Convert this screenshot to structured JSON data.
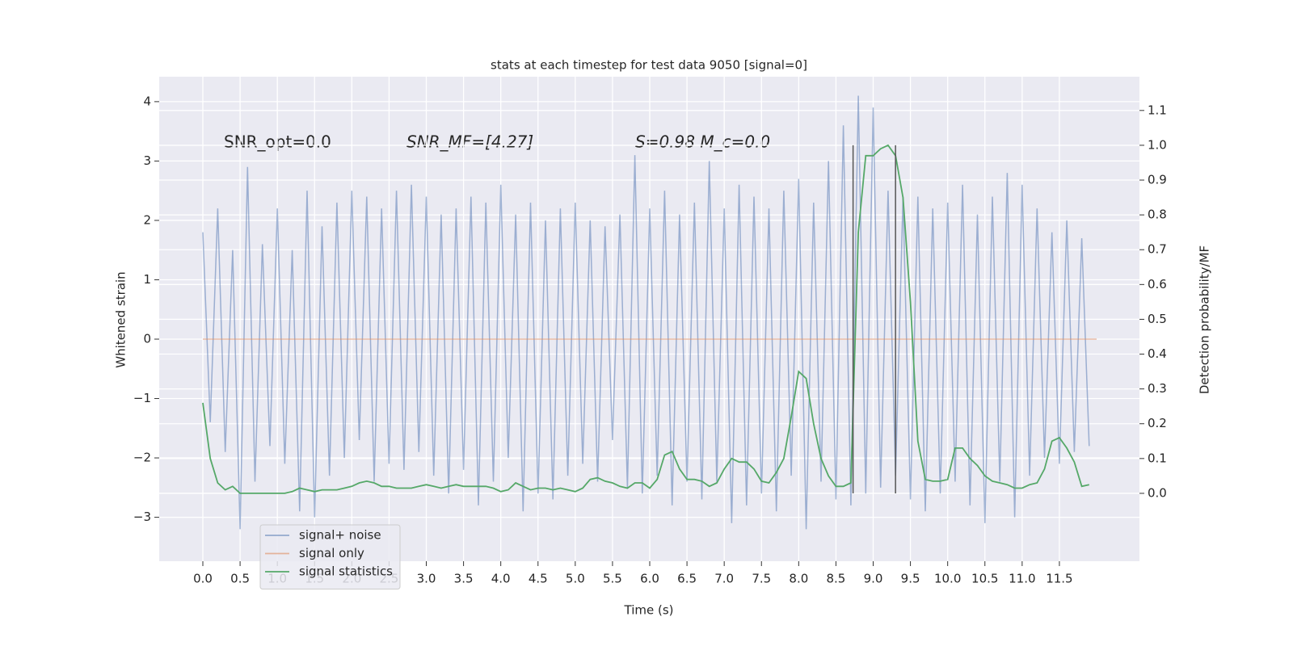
{
  "chart_data": {
    "type": "line",
    "title": "stats at each timestep for test data 9050 [signal=0]",
    "xlabel": "Time (s)",
    "ylabel": "Whitened strain",
    "y2label": "Detection probability/MF",
    "annotations": [
      "SNR_opt=0.0",
      "SNR_MF=[4.27]",
      "S=0.98   M_c=0.0"
    ],
    "xlim": [
      -0.586,
      12.575
    ],
    "ylim": [
      -3.74,
      4.42
    ],
    "y2lim": [
      -0.195,
      1.197
    ],
    "grid": true,
    "legend": "lower left",
    "xticks": [
      {
        "value": 0,
        "label": "0.0"
      },
      {
        "value": 0.5,
        "label": "0.5"
      },
      {
        "value": 1,
        "label": "1.0"
      },
      {
        "value": 1.5,
        "label": "1.5"
      },
      {
        "value": 2,
        "label": "2.0"
      },
      {
        "value": 2.5,
        "label": "2.5"
      },
      {
        "value": 3,
        "label": "3.0"
      },
      {
        "value": 3.5,
        "label": "3.5"
      },
      {
        "value": 4,
        "label": "4.0"
      },
      {
        "value": 4.5,
        "label": "4.5"
      },
      {
        "value": 5,
        "label": "5.0"
      },
      {
        "value": 5.5,
        "label": "5.5"
      },
      {
        "value": 6,
        "label": "6.0"
      },
      {
        "value": 6.5,
        "label": "6.5"
      },
      {
        "value": 7,
        "label": "7.0"
      },
      {
        "value": 7.5,
        "label": "7.5"
      },
      {
        "value": 8,
        "label": "8.0"
      },
      {
        "value": 8.5,
        "label": "8.5"
      },
      {
        "value": 9,
        "label": "9.0"
      },
      {
        "value": 9.5,
        "label": "9.5"
      },
      {
        "value": 10,
        "label": "10.0"
      },
      {
        "value": 10.5,
        "label": "10.5"
      },
      {
        "value": 11,
        "label": "11.0"
      },
      {
        "value": 11.5,
        "label": "11.5"
      }
    ],
    "yticks": [
      {
        "value": -3,
        "label": "−3"
      },
      {
        "value": -2,
        "label": "−2"
      },
      {
        "value": -1,
        "label": "−1"
      },
      0,
      1,
      2,
      3,
      4
    ],
    "y2ticks": [
      {
        "value": 0,
        "label": "0.0"
      },
      {
        "value": 0.1,
        "label": "0.1"
      },
      {
        "value": 0.2,
        "label": "0.2"
      },
      {
        "value": 0.3,
        "label": "0.3"
      },
      {
        "value": 0.4,
        "label": "0.4"
      },
      {
        "value": 0.5,
        "label": "0.5"
      },
      {
        "value": 0.6,
        "label": "0.6"
      },
      {
        "value": 0.7,
        "label": "0.7"
      },
      {
        "value": 0.8,
        "label": "0.8"
      },
      {
        "value": 0.9,
        "label": "0.9"
      },
      {
        "value": 1,
        "label": "1.0"
      },
      {
        "value": 1.1,
        "label": "1.1"
      }
    ],
    "vlines": {
      "x": [
        8.73,
        9.3
      ],
      "y2range": [
        0,
        1
      ],
      "color": "#555555"
    },
    "x": [
      0,
      0.1,
      0.2,
      0.3,
      0.4,
      0.5,
      0.6,
      0.7,
      0.8,
      0.9,
      1,
      1.1,
      1.2,
      1.3,
      1.4,
      1.5,
      1.6,
      1.7,
      1.8,
      1.9,
      2,
      2.1,
      2.2,
      2.3,
      2.4,
      2.5,
      2.6,
      2.7,
      2.8,
      2.9,
      3,
      3.1,
      3.2,
      3.3,
      3.4,
      3.5,
      3.6,
      3.7,
      3.8,
      3.9,
      4,
      4.1,
      4.2,
      4.3,
      4.4,
      4.5,
      4.6,
      4.7,
      4.8,
      4.9,
      5,
      5.1,
      5.2,
      5.3,
      5.4,
      5.5,
      5.6,
      5.7,
      5.8,
      5.9,
      6,
      6.1,
      6.2,
      6.3,
      6.4,
      6.5,
      6.6,
      6.7,
      6.8,
      6.9,
      7,
      7.1,
      7.2,
      7.3,
      7.4,
      7.5,
      7.6,
      7.7,
      7.8,
      7.9,
      8,
      8.1,
      8.2,
      8.3,
      8.4,
      8.5,
      8.6,
      8.7,
      8.8,
      8.9,
      9,
      9.1,
      9.2,
      9.3,
      9.4,
      9.5,
      9.6,
      9.7,
      9.8,
      9.9,
      10,
      10.1,
      10.2,
      10.3,
      10.4,
      10.5,
      10.6,
      10.7,
      10.8,
      10.9,
      11,
      11.1,
      11.2,
      11.3,
      11.4,
      11.5,
      11.6,
      11.7,
      11.8,
      11.9
    ],
    "series": [
      {
        "name": "signal+ noise",
        "color": "#4c72b0",
        "values": [
          1.8,
          -1.4,
          2.2,
          -1.9,
          1.5,
          -3.2,
          2.9,
          -2.4,
          1.6,
          -1.8,
          2.2,
          -2.1,
          1.5,
          -2.9,
          2.5,
          -3.0,
          1.9,
          -2.3,
          2.3,
          -2.0,
          2.5,
          -1.7,
          2.4,
          -2.4,
          2.2,
          -2.1,
          2.5,
          -2.2,
          2.6,
          -1.9,
          2.4,
          -2.3,
          2.1,
          -2.6,
          2.2,
          -2.2,
          2.4,
          -2.8,
          2.3,
          -2.4,
          2.6,
          -2.0,
          2.1,
          -2.9,
          2.3,
          -2.6,
          2.0,
          -2.7,
          2.2,
          -2.3,
          2.3,
          -2.1,
          2.0,
          -2.4,
          1.9,
          -1.7,
          2.1,
          -2.5,
          3.1,
          -2.6,
          2.2,
          -2.3,
          2.5,
          -2.8,
          2.1,
          -2.4,
          2.3,
          -2.7,
          3.0,
          -2.4,
          2.2,
          -3.1,
          2.6,
          -2.8,
          2.4,
          -2.6,
          2.2,
          -2.9,
          2.5,
          -2.3,
          2.7,
          -3.2,
          2.3,
          -2.4,
          3.0,
          -2.7,
          3.6,
          -2.8,
          4.1,
          -2.6,
          3.9,
          -2.5,
          2.5,
          -2.3,
          2.4,
          -2.7,
          2.4,
          -2.9,
          2.2,
          -2.6,
          2.3,
          -2.4,
          2.6,
          -2.8,
          2.1,
          -3.1,
          2.4,
          -2.4,
          2.8,
          -3.0,
          2.6,
          -2.3,
          2.2,
          -2.0,
          1.8,
          -2.1,
          2.0,
          -1.9,
          1.7,
          -1.8
        ]
      },
      {
        "name": "signal only",
        "color": "#dd8452",
        "x": [
          0,
          12
        ],
        "values": [
          0,
          0
        ]
      },
      {
        "name": "signal statistics",
        "color": "#55a868",
        "axis": "y2",
        "values": [
          0.26,
          0.1,
          0.03,
          0.01,
          0.02,
          0.0,
          0.0,
          0.0,
          0.0,
          0.0,
          0.0,
          0.0,
          0.005,
          0.015,
          0.01,
          0.005,
          0.01,
          0.01,
          0.01,
          0.015,
          0.02,
          0.03,
          0.035,
          0.03,
          0.02,
          0.02,
          0.015,
          0.015,
          0.015,
          0.02,
          0.025,
          0.02,
          0.015,
          0.02,
          0.025,
          0.02,
          0.02,
          0.02,
          0.02,
          0.015,
          0.005,
          0.01,
          0.03,
          0.02,
          0.01,
          0.015,
          0.015,
          0.01,
          0.015,
          0.01,
          0.005,
          0.015,
          0.04,
          0.045,
          0.035,
          0.03,
          0.02,
          0.015,
          0.03,
          0.03,
          0.015,
          0.04,
          0.11,
          0.12,
          0.07,
          0.04,
          0.04,
          0.035,
          0.02,
          0.03,
          0.07,
          0.1,
          0.09,
          0.09,
          0.07,
          0.035,
          0.03,
          0.06,
          0.1,
          0.22,
          0.35,
          0.33,
          0.2,
          0.1,
          0.05,
          0.02,
          0.02,
          0.03,
          0.75,
          0.97,
          0.97,
          0.99,
          1.0,
          0.97,
          0.85,
          0.55,
          0.15,
          0.04,
          0.035,
          0.035,
          0.04,
          0.13,
          0.13,
          0.1,
          0.08,
          0.05,
          0.035,
          0.03,
          0.025,
          0.015,
          0.015,
          0.025,
          0.03,
          0.07,
          0.15,
          0.16,
          0.13,
          0.09,
          0.02,
          0.025
        ]
      }
    ]
  }
}
